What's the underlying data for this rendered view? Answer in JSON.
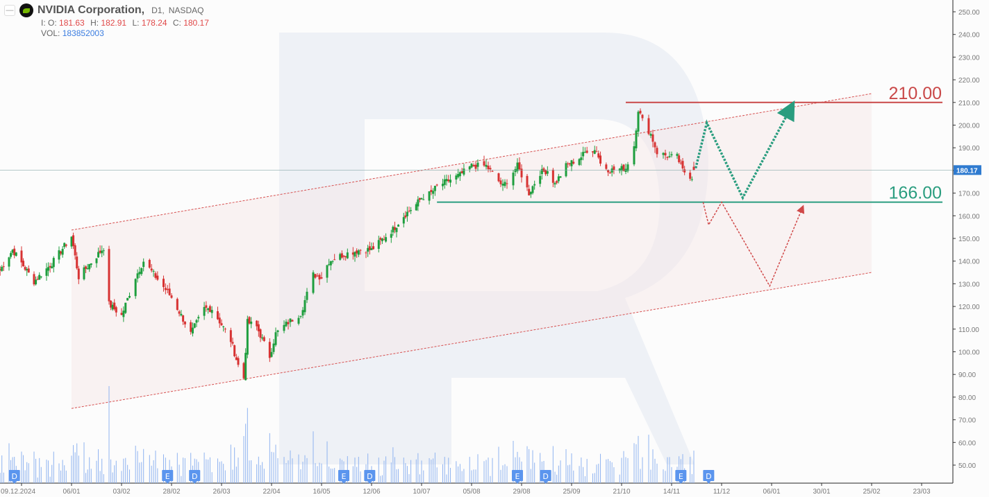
{
  "header": {
    "title": "NVIDIA Corporation,",
    "timeframe": "D1,",
    "exchange": "NASDAQ",
    "open_label": "I: O:",
    "open": "181.63",
    "high_label": "H:",
    "high": "182.91",
    "low_label": "L:",
    "low": "178.24",
    "close_label": "C:",
    "close": "180.17",
    "vol_label": "VOL:",
    "volume": "183852003"
  },
  "colors": {
    "up": "#1e9e3e",
    "down": "#d73232",
    "resistance": "#c94848",
    "support": "#2a9d7f",
    "bullish_path": "#2a9d7f",
    "bearish_path": "#d04848",
    "price_tag": "#2f7bd0",
    "volume": "#8fb3f0",
    "event": "#5b95ee"
  },
  "chart_data": {
    "type": "candlestick",
    "symbol": "NVDA",
    "ylim": [
      45,
      255
    ],
    "y_ticks": [
      "50.00",
      "60.00",
      "70.00",
      "80.00",
      "90.00",
      "100.00",
      "110.00",
      "120.00",
      "130.00",
      "140.00",
      "150.00",
      "160.00",
      "170.00",
      "180.00",
      "190.00",
      "200.00",
      "210.00",
      "220.00",
      "230.00",
      "240.00",
      "250.00"
    ],
    "x_ticks": [
      {
        "date": "2024-12-09",
        "label": "09.12.2024"
      },
      {
        "date": "2025-01-06",
        "label": "06/01"
      },
      {
        "date": "2025-02-03",
        "label": "03/02"
      },
      {
        "date": "2025-02-28",
        "label": "28/02"
      },
      {
        "date": "2025-03-26",
        "label": "26/03"
      },
      {
        "date": "2025-04-22",
        "label": "22/04"
      },
      {
        "date": "2025-05-16",
        "label": "16/05"
      },
      {
        "date": "2025-06-12",
        "label": "12/06"
      },
      {
        "date": "2025-07-10",
        "label": "10/07"
      },
      {
        "date": "2025-08-05",
        "label": "05/08"
      },
      {
        "date": "2025-08-29",
        "label": "29/08"
      },
      {
        "date": "2025-09-25",
        "label": "25/09"
      },
      {
        "date": "2025-10-21",
        "label": "21/10"
      },
      {
        "date": "2025-11-14",
        "label": "14/11"
      },
      {
        "date": "2025-12-11",
        "label": "11/12"
      },
      {
        "date": "2026-01-06",
        "label": "06/01"
      },
      {
        "date": "2026-01-30",
        "label": "30/01"
      },
      {
        "date": "2026-02-25",
        "label": "25/02"
      },
      {
        "date": "2026-03-23",
        "label": "23/03"
      }
    ],
    "close_path": [
      [
        "2024-11-27",
        136
      ],
      [
        "2024-12-04",
        145
      ],
      [
        "2024-12-16",
        131
      ],
      [
        "2024-12-26",
        139
      ],
      [
        "2025-01-06",
        151
      ],
      [
        "2025-01-10",
        133
      ],
      [
        "2025-01-24",
        146
      ],
      [
        "2025-01-27",
        121
      ],
      [
        "2025-02-03",
        116
      ],
      [
        "2025-02-10",
        133
      ],
      [
        "2025-02-14",
        140
      ],
      [
        "2025-02-28",
        124
      ],
      [
        "2025-03-10",
        108
      ],
      [
        "2025-03-17",
        119
      ],
      [
        "2025-03-21",
        119
      ],
      [
        "2025-03-31",
        105
      ],
      [
        "2025-04-04",
        94
      ],
      [
        "2025-04-07",
        88.5
      ],
      [
        "2025-04-09",
        113
      ],
      [
        "2025-04-14",
        111
      ],
      [
        "2025-04-21",
        98
      ],
      [
        "2025-04-24",
        108
      ],
      [
        "2025-04-30",
        113
      ],
      [
        "2025-05-06",
        117
      ],
      [
        "2025-05-12",
        134
      ],
      [
        "2025-05-16",
        133
      ],
      [
        "2025-05-20",
        140
      ],
      [
        "2025-05-28",
        143
      ],
      [
        "2025-06-06",
        145
      ],
      [
        "2025-06-12",
        145
      ],
      [
        "2025-06-24",
        154
      ],
      [
        "2025-06-30",
        160
      ],
      [
        "2025-07-07",
        165
      ],
      [
        "2025-07-10",
        168
      ],
      [
        "2025-07-15",
        170
      ],
      [
        "2025-07-18",
        173
      ],
      [
        "2025-07-30",
        178
      ],
      [
        "2025-08-05",
        182
      ],
      [
        "2025-08-12",
        182
      ],
      [
        "2025-08-20",
        173
      ],
      [
        "2025-08-27",
        182
      ],
      [
        "2025-09-02",
        170
      ],
      [
        "2025-09-08",
        179
      ],
      [
        "2025-09-12",
        180
      ],
      [
        "2025-09-16",
        174
      ],
      [
        "2025-09-22",
        182
      ],
      [
        "2025-09-30",
        186
      ],
      [
        "2025-10-03",
        189
      ],
      [
        "2025-10-08",
        189
      ],
      [
        "2025-10-10",
        183
      ],
      [
        "2025-10-15",
        180
      ],
      [
        "2025-10-23",
        181
      ],
      [
        "2025-10-27",
        191
      ],
      [
        "2025-10-29",
        207
      ],
      [
        "2025-10-31",
        202
      ],
      [
        "2025-11-04",
        196
      ],
      [
        "2025-11-07",
        188
      ],
      [
        "2025-11-13",
        186
      ],
      [
        "2025-11-17",
        186
      ],
      [
        "2025-11-20",
        180
      ],
      [
        "2025-11-25",
        177
      ],
      [
        "2025-11-26",
        180.17
      ]
    ],
    "last_price": "180.17",
    "channel": {
      "upper": [
        [
          "2025-01-06",
          153.7
        ],
        [
          "2026-02-25",
          213.9
        ]
      ],
      "lower": [
        [
          "2025-01-06",
          75
        ],
        [
          "2026-02-25",
          135
        ]
      ]
    },
    "levels": [
      {
        "value": 210,
        "label": "210.00",
        "from": "2025-10-23",
        "kind": "resistance"
      },
      {
        "value": 166,
        "label": "166.00",
        "from": "2025-07-18",
        "kind": "support"
      }
    ],
    "scenarios": {
      "bullish": [
        [
          "2025-11-27",
          181
        ],
        [
          "2025-12-03",
          201
        ],
        [
          "2025-12-22",
          168
        ],
        [
          "2026-01-16",
          209
        ]
      ],
      "bearish": [
        [
          "2025-12-01",
          166
        ],
        [
          "2025-12-04",
          156
        ],
        [
          "2025-12-11",
          166
        ],
        [
          "2026-01-05",
          129
        ],
        [
          "2026-01-21",
          164
        ]
      ]
    },
    "events": [
      {
        "date": "2024-12-05",
        "label": "D"
      },
      {
        "date": "2025-02-26",
        "label": "E"
      },
      {
        "date": "2025-03-12",
        "label": "D"
      },
      {
        "date": "2025-05-28",
        "label": "E"
      },
      {
        "date": "2025-06-11",
        "label": "D"
      },
      {
        "date": "2025-08-27",
        "label": "E"
      },
      {
        "date": "2025-09-11",
        "label": "D"
      },
      {
        "date": "2025-11-19",
        "label": "E"
      },
      {
        "date": "2025-12-04",
        "label": "D"
      }
    ]
  }
}
